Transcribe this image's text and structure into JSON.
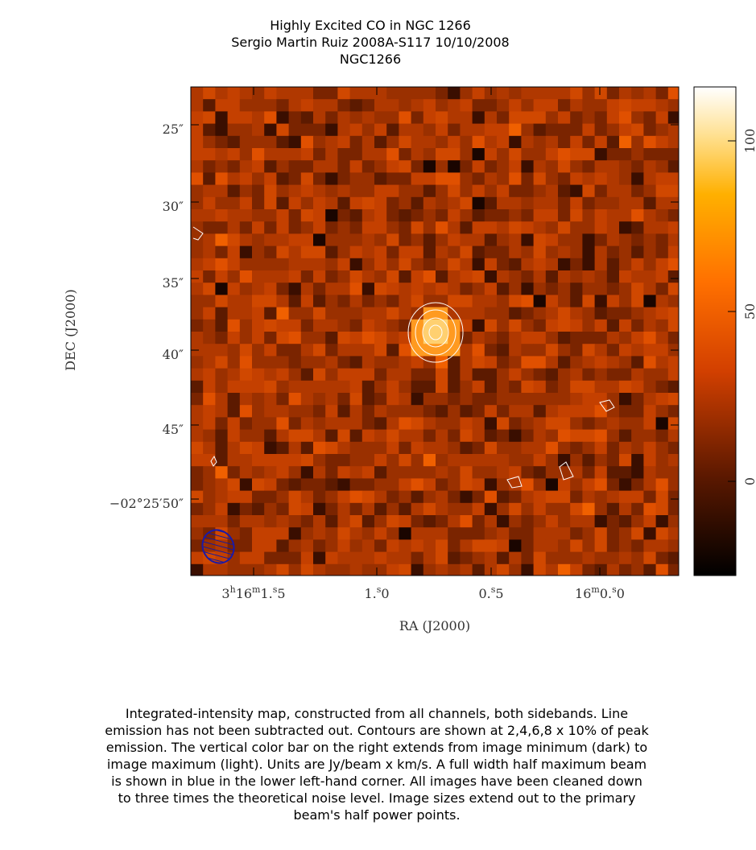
{
  "header": {
    "title": "Highly Excited CO in NGC 1266",
    "subtitle": "Sergio Martin Ruiz   2008A-S117   10/10/2008",
    "source": "NGC1266"
  },
  "axes": {
    "x_label": "RA (J2000)",
    "y_label": "DEC (J2000)",
    "x_ticks": [
      [
        "3",
        "h",
        "16",
        "m",
        "1.",
        "s",
        "5"
      ],
      [
        "1.",
        "s",
        "0"
      ],
      [
        "0.",
        "s",
        "5"
      ],
      [
        "16",
        "m",
        "0.",
        "s",
        "0"
      ]
    ],
    "y_ticks": [
      "25″",
      "30″",
      "35″",
      "40″",
      "45″",
      "−02°25′50″"
    ]
  },
  "colorbar": {
    "ticks": [
      "0",
      "50",
      "100"
    ]
  },
  "caption": [
    "Integrated-intensity map, constructed from all channels, both sidebands.  Line",
    "emission has not been subtracted out.  Contours are shown at 2,4,6,8 x 10% of peak",
    "emission.  The vertical color bar on the right extends from image minimum (dark) to",
    "image maximum (light).  Units are Jy/beam x km/s.  A full width half maximum beam",
    "is shown in blue in the lower left-hand corner.  All images have been cleaned down",
    "to three times the theoretical noise level.  Image sizes extend out to the primary",
    "beam's half power points."
  ]
}
